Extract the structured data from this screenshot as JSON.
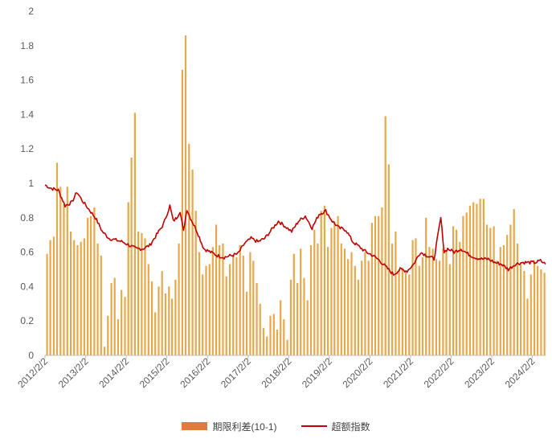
{
  "chart_data": {
    "type": "bar+line",
    "title": "",
    "xlabel": "",
    "ylabel": "",
    "ylim": [
      0,
      2
    ],
    "yticks": [
      "0",
      "0.2",
      "0.4",
      "0.6",
      "0.8",
      "1",
      "1.2",
      "1.4",
      "1.6",
      "1.8",
      "2"
    ],
    "xticks": [
      "2012/2/2",
      "2013/2/2",
      "2014/2/2",
      "2015/2/2",
      "2016/2/2",
      "2017/2/2",
      "2018/2/2",
      "2019/2/2",
      "2020/2/2",
      "2021/2/2",
      "2022/2/2",
      "2023/2/2",
      "2024/2/2"
    ],
    "x_range": [
      "2012/2/2",
      "2024/5/31"
    ],
    "grid": false,
    "legend_position": "bottom",
    "series": [
      {
        "name": "期限利差(10-1)",
        "kind": "bar",
        "color": "#e6a84a",
        "points": [
          [
            "2012/2/20",
            0.59
          ],
          [
            "2012/3/20",
            0.67
          ],
          [
            "2012/4/20",
            0.69
          ],
          [
            "2012/5/20",
            1.12
          ],
          [
            "2012/6/20",
            0.98
          ],
          [
            "2012/7/20",
            0.88
          ],
          [
            "2012/8/20",
            0.98
          ],
          [
            "2012/9/20",
            0.72
          ],
          [
            "2012/10/20",
            0.67
          ],
          [
            "2012/11/20",
            0.64
          ],
          [
            "2012/12/20",
            0.66
          ],
          [
            "2013/1/20",
            0.68
          ],
          [
            "2013/2/20",
            0.8
          ],
          [
            "2013/3/20",
            0.81
          ],
          [
            "2013/4/20",
            0.86
          ],
          [
            "2013/5/20",
            0.65
          ],
          [
            "2013/6/20",
            0.58
          ],
          [
            "2013/7/20",
            0.05
          ],
          [
            "2013/8/20",
            0.23
          ],
          [
            "2013/9/20",
            0.42
          ],
          [
            "2013/10/20",
            0.45
          ],
          [
            "2013/11/20",
            0.21
          ],
          [
            "2013/12/20",
            0.38
          ],
          [
            "2014/1/20",
            0.34
          ],
          [
            "2014/2/20",
            0.89
          ],
          [
            "2014/3/20",
            1.15
          ],
          [
            "2014/4/20",
            1.41
          ],
          [
            "2014/5/20",
            0.72
          ],
          [
            "2014/6/20",
            0.71
          ],
          [
            "2014/7/20",
            0.68
          ],
          [
            "2014/8/20",
            0.53
          ],
          [
            "2014/9/20",
            0.43
          ],
          [
            "2014/10/20",
            0.25
          ],
          [
            "2014/11/20",
            0.4
          ],
          [
            "2014/12/20",
            0.49
          ],
          [
            "2015/1/20",
            0.36
          ],
          [
            "2015/2/20",
            0.4
          ],
          [
            "2015/3/20",
            0.33
          ],
          [
            "2015/4/20",
            0.44
          ],
          [
            "2015/5/20",
            0.65
          ],
          [
            "2015/6/20",
            1.66
          ],
          [
            "2015/7/20",
            1.86
          ],
          [
            "2015/8/20",
            1.23
          ],
          [
            "2015/9/20",
            1.08
          ],
          [
            "2015/10/20",
            0.84
          ],
          [
            "2015/11/20",
            0.6
          ],
          [
            "2015/12/20",
            0.47
          ],
          [
            "2016/1/20",
            0.52
          ],
          [
            "2016/2/20",
            0.53
          ],
          [
            "2016/3/20",
            0.63
          ],
          [
            "2016/4/20",
            0.76
          ],
          [
            "2016/5/20",
            0.64
          ],
          [
            "2016/6/20",
            0.65
          ],
          [
            "2016/7/20",
            0.46
          ],
          [
            "2016/8/20",
            0.53
          ],
          [
            "2016/9/20",
            0.58
          ],
          [
            "2016/10/20",
            0.57
          ],
          [
            "2016/11/20",
            0.64
          ],
          [
            "2016/12/20",
            0.58
          ],
          [
            "2017/1/20",
            0.37
          ],
          [
            "2017/2/20",
            0.6
          ],
          [
            "2017/3/20",
            0.55
          ],
          [
            "2017/4/20",
            0.42
          ],
          [
            "2017/5/20",
            0.3
          ],
          [
            "2017/6/20",
            0.16
          ],
          [
            "2017/7/20",
            0.11
          ],
          [
            "2017/8/20",
            0.23
          ],
          [
            "2017/9/20",
            0.24
          ],
          [
            "2017/10/20",
            0.15
          ],
          [
            "2017/11/20",
            0.32
          ],
          [
            "2017/12/20",
            0.21
          ],
          [
            "2018/1/20",
            0.09
          ],
          [
            "2018/2/20",
            0.44
          ],
          [
            "2018/3/20",
            0.59
          ],
          [
            "2018/4/20",
            0.42
          ],
          [
            "2018/5/20",
            0.62
          ],
          [
            "2018/6/20",
            0.45
          ],
          [
            "2018/7/20",
            0.32
          ],
          [
            "2018/8/20",
            0.64
          ],
          [
            "2018/9/20",
            0.73
          ],
          [
            "2018/10/20",
            0.65
          ],
          [
            "2018/11/20",
            0.84
          ],
          [
            "2018/12/20",
            0.87
          ],
          [
            "2019/1/20",
            0.63
          ],
          [
            "2019/2/20",
            0.74
          ],
          [
            "2019/3/20",
            0.78
          ],
          [
            "2019/4/20",
            0.81
          ],
          [
            "2019/5/20",
            0.65
          ],
          [
            "2019/6/20",
            0.62
          ],
          [
            "2019/7/20",
            0.56
          ],
          [
            "2019/8/20",
            0.6
          ],
          [
            "2019/9/20",
            0.52
          ],
          [
            "2019/10/20",
            0.44
          ],
          [
            "2019/11/20",
            0.55
          ],
          [
            "2019/12/20",
            0.6
          ],
          [
            "2020/1/20",
            0.55
          ],
          [
            "2020/2/20",
            0.77
          ],
          [
            "2020/3/20",
            0.81
          ],
          [
            "2020/4/20",
            0.81
          ],
          [
            "2020/5/20",
            0.86
          ],
          [
            "2020/6/20",
            1.39
          ],
          [
            "2020/7/20",
            1.11
          ],
          [
            "2020/8/20",
            0.65
          ],
          [
            "2020/9/20",
            0.72
          ],
          [
            "2020/10/20",
            0.5
          ],
          [
            "2020/11/20",
            0.51
          ],
          [
            "2020/12/20",
            0.48
          ],
          [
            "2021/1/20",
            0.47
          ],
          [
            "2021/2/20",
            0.67
          ],
          [
            "2021/3/20",
            0.68
          ],
          [
            "2021/4/20",
            0.52
          ],
          [
            "2021/5/20",
            0.57
          ],
          [
            "2021/6/20",
            0.8
          ],
          [
            "2021/7/20",
            0.63
          ],
          [
            "2021/8/20",
            0.62
          ],
          [
            "2021/9/20",
            0.56
          ],
          [
            "2021/10/20",
            0.55
          ],
          [
            "2021/11/20",
            0.62
          ],
          [
            "2021/12/20",
            0.61
          ],
          [
            "2022/1/20",
            0.53
          ],
          [
            "2022/2/20",
            0.75
          ],
          [
            "2022/3/20",
            0.73
          ],
          [
            "2022/4/20",
            0.66
          ],
          [
            "2022/5/20",
            0.81
          ],
          [
            "2022/6/20",
            0.83
          ],
          [
            "2022/7/20",
            0.87
          ],
          [
            "2022/8/20",
            0.89
          ],
          [
            "2022/9/20",
            0.88
          ],
          [
            "2022/10/20",
            0.91
          ],
          [
            "2022/11/20",
            0.91
          ],
          [
            "2022/12/20",
            0.76
          ],
          [
            "2023/1/20",
            0.74
          ],
          [
            "2023/2/20",
            0.75
          ],
          [
            "2023/3/20",
            0.55
          ],
          [
            "2023/4/20",
            0.63
          ],
          [
            "2023/5/20",
            0.64
          ],
          [
            "2023/6/20",
            0.7
          ],
          [
            "2023/7/20",
            0.76
          ],
          [
            "2023/8/20",
            0.85
          ],
          [
            "2023/9/20",
            0.65
          ],
          [
            "2023/10/20",
            0.53
          ],
          [
            "2023/11/20",
            0.49
          ],
          [
            "2023/12/20",
            0.33
          ],
          [
            "2024/1/20",
            0.47
          ],
          [
            "2024/2/20",
            0.55
          ],
          [
            "2024/3/20",
            0.52
          ],
          [
            "2024/4/20",
            0.5
          ],
          [
            "2024/5/20",
            0.48
          ]
        ]
      },
      {
        "name": "超额指数",
        "kind": "line",
        "color": "#c00000",
        "points": [
          [
            "2012/2/2",
            0.99
          ],
          [
            "2012/4/1",
            0.97
          ],
          [
            "2012/6/1",
            0.96
          ],
          [
            "2012/8/1",
            0.87
          ],
          [
            "2012/10/1",
            0.89
          ],
          [
            "2012/11/15",
            0.95
          ],
          [
            "2013/1/1",
            0.9
          ],
          [
            "2013/3/1",
            0.85
          ],
          [
            "2013/5/1",
            0.8
          ],
          [
            "2013/7/1",
            0.72
          ],
          [
            "2013/9/1",
            0.68
          ],
          [
            "2013/11/1",
            0.67
          ],
          [
            "2014/1/1",
            0.66
          ],
          [
            "2014/3/1",
            0.64
          ],
          [
            "2014/5/1",
            0.62
          ],
          [
            "2014/7/1",
            0.62
          ],
          [
            "2014/9/1",
            0.64
          ],
          [
            "2014/11/1",
            0.7
          ],
          [
            "2015/1/1",
            0.76
          ],
          [
            "2015/3/1",
            0.87
          ],
          [
            "2015/4/1",
            0.78
          ],
          [
            "2015/5/1",
            0.8
          ],
          [
            "2015/6/1",
            0.84
          ],
          [
            "2015/7/1",
            0.72
          ],
          [
            "2015/8/1",
            0.85
          ],
          [
            "2015/9/1",
            0.8
          ],
          [
            "2015/11/1",
            0.72
          ],
          [
            "2016/1/1",
            0.62
          ],
          [
            "2016/3/1",
            0.6
          ],
          [
            "2016/5/1",
            0.58
          ],
          [
            "2016/7/1",
            0.57
          ],
          [
            "2016/9/1",
            0.58
          ],
          [
            "2016/11/1",
            0.59
          ],
          [
            "2017/1/1",
            0.65
          ],
          [
            "2017/3/1",
            0.68
          ],
          [
            "2017/5/1",
            0.66
          ],
          [
            "2017/7/1",
            0.68
          ],
          [
            "2017/9/1",
            0.73
          ],
          [
            "2017/11/1",
            0.78
          ],
          [
            "2018/1/1",
            0.75
          ],
          [
            "2018/3/1",
            0.72
          ],
          [
            "2018/5/1",
            0.78
          ],
          [
            "2018/7/1",
            0.81
          ],
          [
            "2018/9/1",
            0.74
          ],
          [
            "2018/11/1",
            0.82
          ],
          [
            "2019/1/1",
            0.84
          ],
          [
            "2019/3/1",
            0.78
          ],
          [
            "2019/5/1",
            0.74
          ],
          [
            "2019/7/1",
            0.73
          ],
          [
            "2019/9/1",
            0.66
          ],
          [
            "2019/11/1",
            0.63
          ],
          [
            "2020/1/1",
            0.6
          ],
          [
            "2020/3/1",
            0.58
          ],
          [
            "2020/5/1",
            0.55
          ],
          [
            "2020/7/1",
            0.51
          ],
          [
            "2020/9/1",
            0.47
          ],
          [
            "2020/11/1",
            0.5
          ],
          [
            "2021/1/1",
            0.49
          ],
          [
            "2021/3/1",
            0.53
          ],
          [
            "2021/5/1",
            0.6
          ],
          [
            "2021/7/1",
            0.58
          ],
          [
            "2021/9/1",
            0.56
          ],
          [
            "2021/11/1",
            0.8
          ],
          [
            "2021/12/1",
            0.6
          ],
          [
            "2022/1/1",
            0.62
          ],
          [
            "2022/3/1",
            0.6
          ],
          [
            "2022/5/1",
            0.62
          ],
          [
            "2022/7/1",
            0.59
          ],
          [
            "2022/9/1",
            0.57
          ],
          [
            "2022/11/1",
            0.56
          ],
          [
            "2023/1/1",
            0.56
          ],
          [
            "2023/3/1",
            0.54
          ],
          [
            "2023/5/1",
            0.53
          ],
          [
            "2023/7/1",
            0.5
          ],
          [
            "2023/9/1",
            0.53
          ],
          [
            "2023/11/1",
            0.54
          ],
          [
            "2024/1/1",
            0.54
          ],
          [
            "2024/3/1",
            0.54
          ],
          [
            "2024/4/15",
            0.55
          ],
          [
            "2024/5/31",
            0.53
          ]
        ]
      }
    ]
  }
}
